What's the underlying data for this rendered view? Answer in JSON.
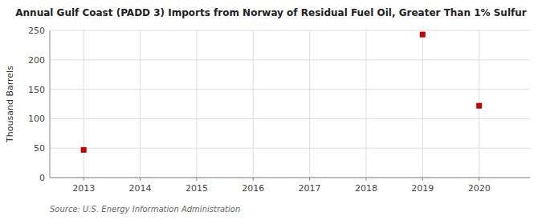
{
  "chart_data": {
    "type": "scatter",
    "title": "Annual Gulf Coast (PADD 3) Imports from Norway of Residual Fuel Oil, Greater Than 1% Sulfur",
    "ylabel": "Thousand Barrels",
    "source": "Source: U.S. Energy Information Administration",
    "x": [
      2013,
      2014,
      2015,
      2016,
      2017,
      2018,
      2019,
      2020
    ],
    "values": [
      47,
      null,
      null,
      null,
      null,
      null,
      243,
      122
    ],
    "color": "#CC0000",
    "marker": "square",
    "xlim": [
      2012.4,
      2020.9
    ],
    "ylim": [
      0,
      250
    ],
    "xticks": [
      2013,
      2014,
      2015,
      2016,
      2017,
      2018,
      2019,
      2020
    ],
    "yticks": [
      0,
      50,
      100,
      150,
      200,
      250
    ],
    "grid": true
  }
}
